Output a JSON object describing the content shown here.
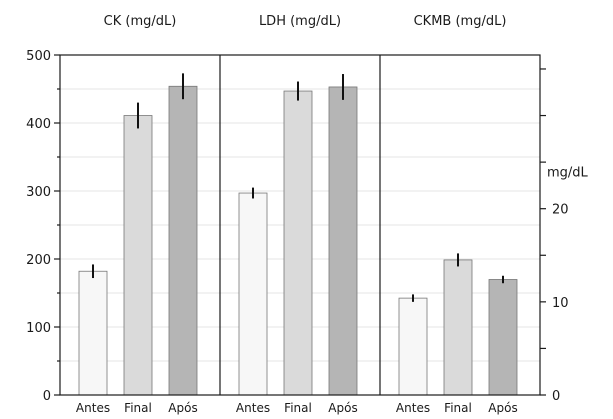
{
  "chart_data": [
    {
      "type": "bar",
      "title": "CK (mg/dL)",
      "categories": [
        "Antes",
        "Final",
        "Após"
      ],
      "values": [
        182,
        411,
        454
      ],
      "errors": [
        10,
        19,
        19
      ],
      "y_axis": "left",
      "ylim": [
        0,
        500
      ],
      "yticks": [
        0,
        100,
        200,
        300,
        400,
        500
      ]
    },
    {
      "type": "bar",
      "title": "LDH (mg/dL)",
      "categories": [
        "Antes",
        "Final",
        "Após"
      ],
      "values": [
        297,
        447,
        453
      ],
      "errors": [
        8,
        14,
        19
      ],
      "y_axis": "left",
      "ylim": [
        0,
        500
      ],
      "yticks": [
        0,
        100,
        200,
        300,
        400,
        500
      ]
    },
    {
      "type": "bar",
      "title": "CKMB (mg/dL)",
      "categories": [
        "Antes",
        "Final",
        "Após"
      ],
      "values": [
        10.4,
        14.5,
        12.4
      ],
      "errors": [
        0.4,
        0.7,
        0.4
      ],
      "y_axis": "right",
      "ylabel": "mg/dL",
      "ylim": [
        0,
        36.5
      ],
      "yticks": [
        0,
        10,
        20
      ]
    }
  ],
  "colors": {
    "bars": [
      "#f7f7f7",
      "#dadada",
      "#b5b5b5"
    ],
    "axis": "#1a1a1a",
    "grid": "#e6e6e6"
  },
  "grid": true
}
